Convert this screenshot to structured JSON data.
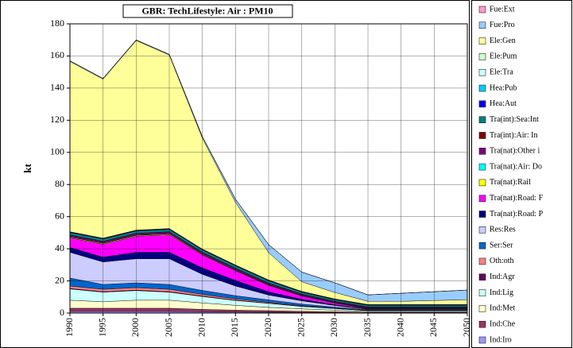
{
  "chart_data": {
    "type": "stacked_area",
    "title": "GBR: TechLifestyle: Air : PM10",
    "y_label": "kt",
    "categories": [
      "1990",
      "1995",
      "2000",
      "2005",
      "2010",
      "2015",
      "2020",
      "2025",
      "2030",
      "2035",
      "2040",
      "2045",
      "2050"
    ],
    "ylim": [
      0,
      180
    ],
    "yticks": [
      0,
      20,
      40,
      60,
      80,
      100,
      120,
      140,
      160,
      180
    ],
    "grid": true,
    "legend": "right",
    "series": [
      {
        "name": "Ind:Iro",
        "color": "#9999ff",
        "values": [
          1,
          1,
          1,
          1,
          0.8,
          0.6,
          0.5,
          0.3,
          0.2,
          0.1,
          0.1,
          0.1,
          0.1
        ]
      },
      {
        "name": "Ind:Che",
        "color": "#993366",
        "values": [
          2,
          2,
          2,
          2,
          1.5,
          1.2,
          1,
          0.8,
          0.6,
          0.4,
          0.4,
          0.4,
          0.4
        ]
      },
      {
        "name": "Ind:Met",
        "color": "#ffffcc",
        "values": [
          5,
          4,
          5,
          5,
          4,
          3,
          2,
          1.5,
          1,
          0.5,
          0.5,
          0.5,
          0.5
        ]
      },
      {
        "name": "Ind:Lig",
        "color": "#ccffff",
        "values": [
          7,
          6,
          6,
          5,
          4,
          3,
          2.5,
          1.5,
          1,
          0.5,
          0.5,
          0.5,
          0.5
        ]
      },
      {
        "name": "Ind:Agr",
        "color": "#660066",
        "values": [
          0.3,
          0.3,
          0.3,
          0.3,
          0.3,
          0.2,
          0.2,
          0.2,
          0.1,
          0.1,
          0.1,
          0.1,
          0.1
        ]
      },
      {
        "name": "Oth:oth",
        "color": "#ff8080",
        "values": [
          1.5,
          1.5,
          1.5,
          1.5,
          1,
          0.8,
          0.5,
          0.3,
          0.2,
          0.1,
          0.1,
          0.1,
          0.1
        ]
      },
      {
        "name": "Ser:Ser",
        "color": "#0066cc",
        "values": [
          5,
          3,
          3,
          3,
          2.5,
          2,
          1.5,
          1,
          0.6,
          0.3,
          0.3,
          0.3,
          0.3
        ]
      },
      {
        "name": "Res:Res",
        "color": "#ccccff",
        "values": [
          16,
          14,
          15,
          16,
          10,
          6,
          3,
          2,
          1,
          0.3,
          0.3,
          0.3,
          0.3
        ]
      },
      {
        "name": "Tra(nat):Road: P",
        "color": "#000080",
        "values": [
          3,
          3,
          4,
          4,
          4,
          3.5,
          2,
          1,
          0.5,
          0.3,
          0.3,
          0.3,
          0.3
        ]
      },
      {
        "name": "Tra(nat):Road: F",
        "color": "#ff00ff",
        "values": [
          6,
          8,
          10,
          11,
          8,
          6,
          4,
          2,
          1,
          0.3,
          0.3,
          0.3,
          0.3
        ]
      },
      {
        "name": "Tra(nat):Rail",
        "color": "#ffff00",
        "values": [
          0.5,
          0.5,
          0.5,
          0.5,
          0.4,
          0.3,
          0.3,
          0.2,
          0.2,
          0.1,
          0.1,
          0.1,
          0.1
        ]
      },
      {
        "name": "Tra(nat):Air: Do",
        "color": "#00ffff",
        "values": [
          0.2,
          0.2,
          0.2,
          0.2,
          0.2,
          0.2,
          0.2,
          0.2,
          0.2,
          0.2,
          0.2,
          0.2,
          0.2
        ]
      },
      {
        "name": "Tra(nat):Other i",
        "color": "#800080",
        "values": [
          1,
          1,
          1,
          1,
          1,
          1,
          0.8,
          0.7,
          0.6,
          0.5,
          0.5,
          0.5,
          0.5
        ]
      },
      {
        "name": "Tra(int):Air: In",
        "color": "#800000",
        "values": [
          0.1,
          0.1,
          0.1,
          0.1,
          0.1,
          0.1,
          0.1,
          0.1,
          0.1,
          0.1,
          0.1,
          0.1,
          0.1
        ]
      },
      {
        "name": "Tra(int):Sea:Int",
        "color": "#008080",
        "values": [
          1.5,
          1.5,
          1.5,
          1.5,
          1.5,
          1.5,
          1.5,
          1.2,
          1,
          1,
          1,
          1,
          1
        ]
      },
      {
        "name": "Hea:Aut",
        "color": "#0000ff",
        "values": [
          0.3,
          0.3,
          0.3,
          0.3,
          0.3,
          0.3,
          0.3,
          0.3,
          0.3,
          0.3,
          0.3,
          0.3,
          0.3
        ]
      },
      {
        "name": "Hea:Pub",
        "color": "#00ccff",
        "values": [
          0.2,
          0.2,
          0.2,
          0.2,
          0.2,
          0.2,
          0.2,
          0.2,
          0.2,
          0.2,
          0.2,
          0.2,
          0.2
        ]
      },
      {
        "name": "Ele:Tra",
        "color": "#ccffff",
        "values": [
          0,
          0,
          0,
          0,
          0,
          0,
          0,
          0,
          0,
          0,
          0,
          0,
          0
        ]
      },
      {
        "name": "Ele:Pum",
        "color": "#ccffcc",
        "values": [
          0,
          0,
          0,
          0,
          0,
          0,
          0,
          0,
          0,
          0,
          0,
          0,
          0
        ]
      },
      {
        "name": "Ele:Gen",
        "color": "#ffff99",
        "values": [
          106,
          99,
          118,
          108,
          69,
          39,
          17,
          6,
          4,
          2,
          2,
          2.5,
          3
        ]
      },
      {
        "name": "Fue:Pro",
        "color": "#99ccff",
        "values": [
          0.4,
          0.4,
          0.4,
          0.4,
          1,
          2,
          5,
          6,
          6,
          4,
          5,
          5.5,
          6
        ]
      },
      {
        "name": "Fue:Ext",
        "color": "#ff99cc",
        "values": [
          0,
          0,
          0,
          0,
          0,
          0,
          0,
          0,
          0,
          0,
          0,
          0,
          0
        ]
      }
    ]
  }
}
